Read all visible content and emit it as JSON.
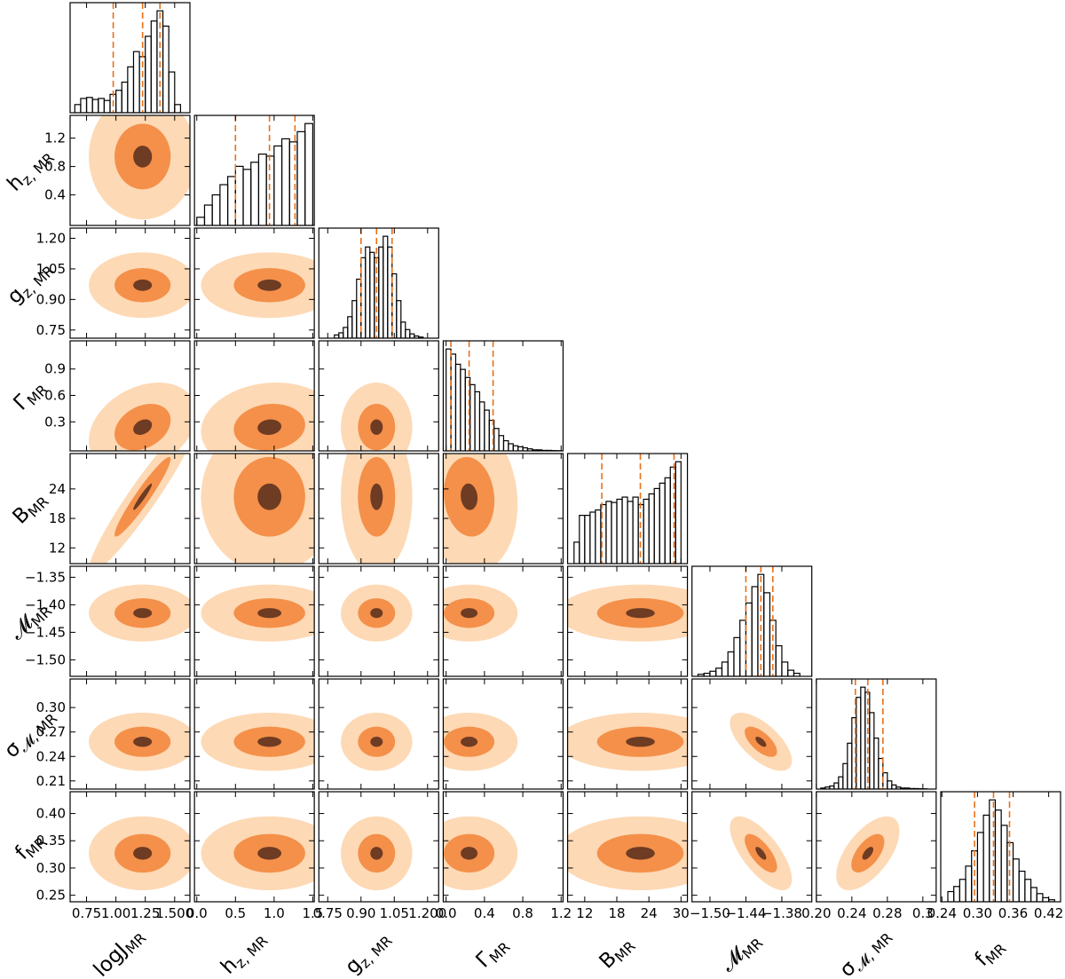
{
  "chart_data": {
    "type": "corner",
    "contour_colors": [
      "#fdd9b5",
      "#f4904a",
      "#6e3b23"
    ],
    "quantile_color": "#e8701a",
    "hist_color": "#000000",
    "params": [
      {
        "label": {
          "main": "logJ",
          "sub": "MR"
        },
        "lim": [
          0.61,
          1.63
        ],
        "xticks": [
          0.75,
          {
            "value": 1.0,
            "label": "1.00"
          },
          1.25,
          {
            "value": 1.5,
            "label": "1.500"
          }
        ],
        "quantiles": [
          0.977,
          1.227,
          1.375
        ],
        "bins": [
          0.65,
          0.7,
          0.75,
          0.8,
          0.85,
          0.9,
          0.95,
          1.0,
          1.05,
          1.1,
          1.15,
          1.2,
          1.25,
          1.3,
          1.35,
          1.4,
          1.45,
          1.5,
          1.55
        ],
        "counts": [
          8,
          14,
          15,
          13,
          14,
          12,
          18,
          22,
          30,
          45,
          60,
          55,
          75,
          90,
          100,
          85,
          40,
          8
        ]
      },
      {
        "label": {
          "main": "h",
          "sub": "z, MR"
        },
        "lim": [
          -0.03,
          1.52
        ],
        "xticks": [
          {
            "value": 0,
            "label": "0.0"
          },
          0.5,
          {
            "value": 1,
            "label": "1.0"
          },
          1.5
        ],
        "yticks": [
          0.4,
          0.8,
          1.2
        ],
        "quantiles": [
          0.5,
          0.94,
          1.27
        ],
        "bins": [
          0,
          0.1,
          0.2,
          0.3,
          0.4,
          0.5,
          0.6,
          0.7,
          0.8,
          0.9,
          1.0,
          1.1,
          1.2,
          1.3,
          1.4,
          1.5
        ],
        "counts": [
          8,
          20,
          30,
          40,
          48,
          58,
          55,
          62,
          70,
          68,
          78,
          85,
          82,
          92,
          100
        ]
      },
      {
        "label": {
          "main": "g",
          "sub": "z, MR"
        },
        "lim": [
          0.71,
          1.25
        ],
        "xticks": [
          0.75,
          {
            "value": 0.9,
            "label": "0.90"
          },
          1.05,
          {
            "value": 1.2,
            "label": "1.200"
          }
        ],
        "yticks": [
          0.75,
          {
            "value": 0.9,
            "label": "0.90"
          },
          1.05,
          {
            "value": 1.2,
            "label": "1.20"
          }
        ],
        "quantiles": [
          0.9,
          0.97,
          1.04
        ],
        "bins": [
          0.78,
          0.8,
          0.82,
          0.84,
          0.86,
          0.88,
          0.9,
          0.92,
          0.94,
          0.96,
          0.98,
          1.0,
          1.02,
          1.04,
          1.06,
          1.08,
          1.1,
          1.12,
          1.14,
          1.16,
          1.18
        ],
        "counts": [
          3,
          5,
          10,
          20,
          35,
          55,
          75,
          85,
          80,
          75,
          85,
          95,
          85,
          60,
          35,
          15,
          8,
          4,
          2,
          1
        ]
      },
      {
        "label": {
          "main": "Γ",
          "sub": "MR"
        },
        "lim": [
          -0.03,
          1.22
        ],
        "xticks": [
          {
            "value": 0,
            "label": "0.0"
          },
          0.4,
          0.8,
          1.2
        ],
        "yticks": [
          0.3,
          0.6,
          0.9
        ],
        "quantiles": [
          0.05,
          0.24,
          0.49
        ],
        "bins": [
          0,
          0.05,
          0.1,
          0.15,
          0.2,
          0.25,
          0.3,
          0.35,
          0.4,
          0.45,
          0.5,
          0.55,
          0.6,
          0.65,
          0.7,
          0.75,
          0.8,
          0.85,
          0.9,
          0.95,
          1.0,
          1.05,
          1.1,
          1.15,
          1.2
        ],
        "counts": [
          100,
          95,
          85,
          80,
          72,
          65,
          58,
          48,
          40,
          30,
          22,
          15,
          10,
          7,
          5,
          4,
          3,
          2,
          1,
          1,
          0.5,
          0.5,
          0.3,
          0.2
        ]
      },
      {
        "label": {
          "main": "B",
          "sub": "MR"
        },
        "lim": [
          8.8,
          31.2
        ],
        "xticks": [
          12,
          18,
          24,
          30
        ],
        "yticks": [
          12,
          18,
          24
        ],
        "quantiles": [
          15.2,
          22.4,
          28.7
        ],
        "bins": [
          10,
          11,
          12,
          13,
          14,
          15,
          16,
          17,
          18,
          19,
          20,
          21,
          22,
          23,
          24,
          25,
          26,
          27,
          28,
          29,
          30
        ],
        "counts": [
          20,
          45,
          45,
          48,
          50,
          55,
          58,
          57,
          60,
          62,
          58,
          62,
          55,
          60,
          65,
          70,
          75,
          80,
          90,
          95
        ]
      },
      {
        "label": {
          "main": "𝓜",
          "sub": "MR"
        },
        "lim": [
          -1.53,
          -1.33
        ],
        "xticks": [
          {
            "value": -1.5,
            "label": "−1.50"
          },
          {
            "value": -1.44,
            "label": "−1.44"
          },
          {
            "value": -1.38,
            "label": "−1.38"
          }
        ],
        "yticks": [
          {
            "value": -1.35,
            "label": "−1.35"
          },
          {
            "value": -1.4,
            "label": "−1.40"
          },
          {
            "value": -1.45,
            "label": "−1.45"
          },
          {
            "value": -1.5,
            "label": "−1.50"
          }
        ],
        "quantiles": [
          -1.44,
          -1.415,
          -1.395
        ],
        "bins": [
          -1.52,
          -1.51,
          -1.5,
          -1.49,
          -1.48,
          -1.47,
          -1.46,
          -1.45,
          -1.44,
          -1.43,
          -1.42,
          -1.41,
          -1.4,
          -1.39,
          -1.38,
          -1.37,
          -1.36,
          -1.35
        ],
        "counts": [
          2,
          3,
          5,
          8,
          14,
          24,
          38,
          55,
          72,
          88,
          100,
          82,
          55,
          30,
          14,
          6,
          3
        ]
      },
      {
        "label": {
          "main": "σ",
          "sub": "𝓜, MR"
        },
        "lim": [
          0.2,
          0.335
        ],
        "xticks": [
          {
            "value": 0.2,
            "label": "0.20"
          },
          0.24,
          0.28,
          {
            "value": 0.32,
            "label": "0.3"
          }
        ],
        "yticks": [
          0.21,
          0.24,
          0.27,
          {
            "value": 0.3,
            "label": "0.30"
          }
        ],
        "quantiles": [
          0.244,
          0.258,
          0.275
        ],
        "bins": [
          0.205,
          0.21,
          0.215,
          0.22,
          0.225,
          0.23,
          0.235,
          0.24,
          0.245,
          0.25,
          0.255,
          0.26,
          0.265,
          0.27,
          0.275,
          0.28,
          0.285,
          0.29,
          0.295,
          0.3,
          0.305,
          0.31,
          0.315,
          0.32,
          0.325
        ],
        "counts": [
          1,
          2,
          3,
          6,
          12,
          25,
          45,
          70,
          90,
          100,
          95,
          75,
          50,
          30,
          16,
          8,
          4,
          2,
          1,
          1,
          0.5,
          0.5,
          0.3,
          0.2
        ]
      },
      {
        "label": {
          "main": "f",
          "sub": "MR"
        },
        "lim": [
          0.238,
          0.44
        ],
        "xticks": [
          0.24,
          {
            "value": 0.3,
            "label": "0.30"
          },
          0.36,
          0.42
        ],
        "yticks": [
          0.25,
          {
            "value": 0.3,
            "label": "0.30"
          },
          0.35,
          {
            "value": 0.4,
            "label": "0.40"
          }
        ],
        "quantiles": [
          0.295,
          0.327,
          0.354
        ],
        "bins": [
          0.25,
          0.26,
          0.27,
          0.28,
          0.29,
          0.3,
          0.31,
          0.32,
          0.33,
          0.34,
          0.35,
          0.36,
          0.37,
          0.38,
          0.39,
          0.4,
          0.41,
          0.42,
          0.43
        ],
        "counts": [
          10,
          15,
          22,
          35,
          50,
          68,
          85,
          100,
          90,
          75,
          58,
          42,
          30,
          22,
          14,
          8,
          4,
          2
        ]
      }
    ],
    "correlation": [
      [
        0
      ],
      [
        0,
        0
      ],
      [
        0.3,
        0.1,
        0
      ],
      [
        0.95,
        0,
        0,
        -0.1
      ],
      [
        0,
        0,
        0,
        0,
        0
      ],
      [
        0,
        0,
        0,
        0,
        0,
        -0.65
      ],
      [
        0,
        0,
        0,
        0,
        0,
        -0.7,
        0.6
      ]
    ]
  }
}
